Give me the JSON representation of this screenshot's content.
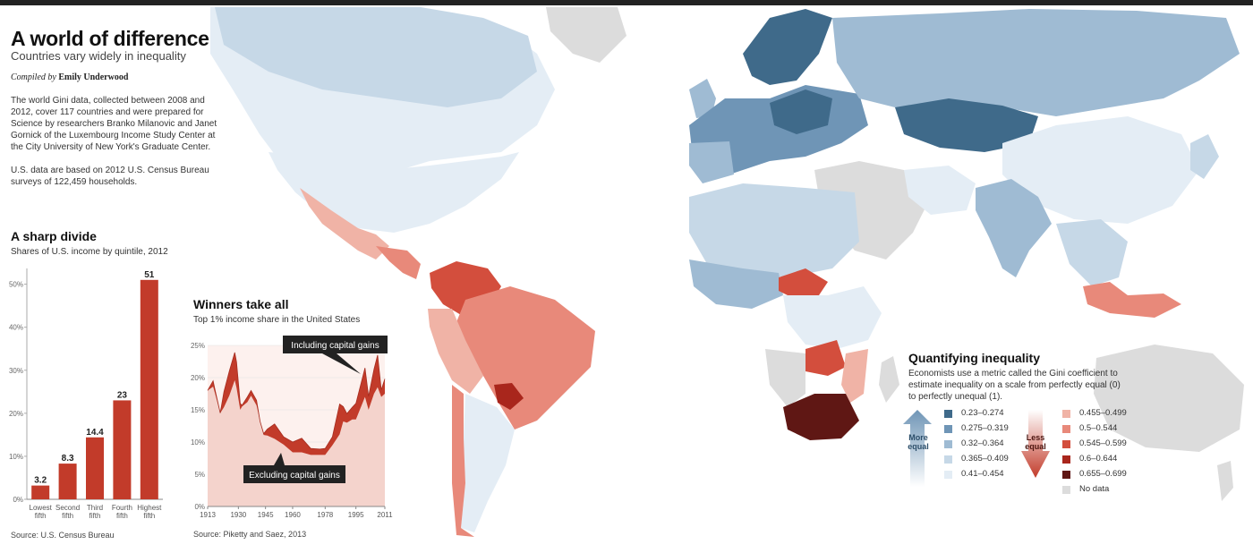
{
  "header": {
    "title": "A world of difference",
    "subtitle": "Countries vary widely in inequality",
    "compiled_prefix": "Compiled by",
    "author": "Emily Underwood",
    "para1": "The world Gini data, collected between 2008 and 2012, cover 117 countries and were prepared for Science by researchers Branko Milanovic and Janet Gornick of the Luxembourg Income Study Center at the City University of New York's Graduate Center.",
    "para2": "U.S. data are based on 2012 U.S. Census Bureau surveys of 122,459 households."
  },
  "legend": {
    "title": "Quantifying inequality",
    "description": "Economists use a metric called the Gini coefficient to estimate inequality on a scale from perfectly equal (0) to perfectly unequal (1).",
    "more_equal": "More equal",
    "less_equal": "Less equal",
    "blue_classes": [
      {
        "label": "0.23–0.274",
        "color": "#3f6a8a"
      },
      {
        "label": "0.275–0.319",
        "color": "#6f95b6"
      },
      {
        "label": "0.32–0.364",
        "color": "#9fbbd3"
      },
      {
        "label": "0.365–0.409",
        "color": "#c6d8e7"
      },
      {
        "label": "0.41–0.454",
        "color": "#e4edf5"
      }
    ],
    "red_classes": [
      {
        "label": "0.455–0.499",
        "color": "#f0b3a6"
      },
      {
        "label": "0.5–0.544",
        "color": "#e8897a"
      },
      {
        "label": "0.545–0.599",
        "color": "#d34e3d"
      },
      {
        "label": "0.6–0.644",
        "color": "#a9261c"
      },
      {
        "label": "0.655–0.699",
        "color": "#5f1714"
      }
    ],
    "no_data": {
      "label": "No data",
      "color": "#dcdcdc"
    }
  },
  "chart_data": [
    {
      "type": "bar",
      "title": "A sharp divide",
      "subtitle": "Shares of U.S. income by quintile, 2012",
      "categories": [
        "Lowest fifth",
        "Second fifth",
        "Third fifth",
        "Fourth fifth",
        "Highest fifth"
      ],
      "category_lines": [
        [
          "Lowest",
          "fifth"
        ],
        [
          "Second",
          "fifth"
        ],
        [
          "Third",
          "fifth"
        ],
        [
          "Fourth",
          "fifth"
        ],
        [
          "Highest",
          "fifth"
        ]
      ],
      "values": [
        3.2,
        8.3,
        14.4,
        23,
        51
      ],
      "value_labels": [
        "3.2",
        "8.3",
        "14.4",
        "23",
        "51"
      ],
      "yticks": [
        "0%",
        "10%",
        "20%",
        "30%",
        "40%",
        "50%"
      ],
      "ylim": [
        0,
        52
      ],
      "color": "#c23b2a",
      "source": "Source: U.S. Census Bureau"
    },
    {
      "type": "area",
      "title": "Winners take all",
      "subtitle": "Top 1% income share in the United States",
      "xticks": [
        "1913",
        "1930",
        "1945",
        "1960",
        "1978",
        "1995",
        "2011"
      ],
      "yticks": [
        "0%",
        "5%",
        "10%",
        "15%",
        "20%",
        "25%"
      ],
      "xlim": [
        1913,
        2011
      ],
      "ylim": [
        0,
        25
      ],
      "series": [
        {
          "name": "Including capital gains",
          "color": "#c23b2a",
          "x": [
            1913,
            1916,
            1917,
            1920,
            1922,
            1925,
            1928,
            1929,
            1931,
            1932,
            1935,
            1937,
            1940,
            1942,
            1944,
            1946,
            1950,
            1955,
            1960,
            1965,
            1970,
            1975,
            1978,
            1982,
            1986,
            1988,
            1990,
            1993,
            1995,
            2000,
            2002,
            2005,
            2007,
            2009,
            2011
          ],
          "y": [
            18.0,
            19.5,
            18.2,
            14.5,
            17.8,
            21.0,
            23.9,
            22.4,
            16.0,
            15.7,
            17.0,
            18.0,
            16.5,
            13.2,
            11.3,
            12.0,
            12.8,
            10.8,
            10.0,
            10.6,
            9.0,
            8.9,
            9.0,
            10.8,
            15.9,
            15.5,
            14.4,
            15.4,
            16.0,
            21.5,
            17.1,
            21.3,
            23.5,
            18.1,
            19.8
          ]
        },
        {
          "name": "Excluding capital gains",
          "color": "#f4d3cc",
          "x": [
            1913,
            1916,
            1917,
            1920,
            1922,
            1925,
            1928,
            1929,
            1931,
            1932,
            1935,
            1937,
            1940,
            1942,
            1944,
            1946,
            1950,
            1955,
            1960,
            1965,
            1970,
            1975,
            1978,
            1982,
            1986,
            1988,
            1990,
            1993,
            1995,
            2000,
            2002,
            2005,
            2007,
            2009,
            2011
          ],
          "y": [
            18.0,
            18.6,
            17.6,
            14.5,
            15.4,
            17.2,
            19.6,
            18.4,
            15.0,
            15.5,
            16.2,
            17.2,
            15.7,
            13.2,
            11.1,
            11.0,
            10.5,
            9.6,
            8.4,
            8.4,
            8.0,
            8.0,
            8.0,
            9.5,
            11.2,
            13.2,
            13.0,
            13.5,
            13.5,
            17.0,
            15.0,
            17.5,
            18.5,
            17.0,
            17.5
          ]
        }
      ],
      "source": "Source: Piketty and Saez, 2013"
    }
  ]
}
